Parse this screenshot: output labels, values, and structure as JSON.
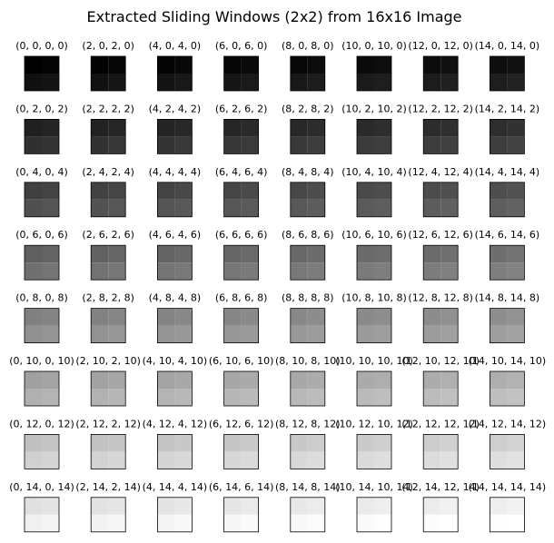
{
  "chart_data": {
    "type": "heatmap",
    "title": "Extracted Sliding Windows (2x2) from 16x16 Image",
    "colormap": "gray",
    "value_range": [
      0,
      255
    ],
    "grid_size": [
      8,
      8
    ],
    "windows": [
      {
        "label": "(0, 0, 0, 0)",
        "pixels": [
          [
            0,
            4
          ],
          [
            16,
            20
          ]
        ]
      },
      {
        "label": "(2, 0, 2, 0)",
        "pixels": [
          [
            2,
            6
          ],
          [
            18,
            22
          ]
        ]
      },
      {
        "label": "(4, 0, 4, 0)",
        "pixels": [
          [
            4,
            8
          ],
          [
            20,
            24
          ]
        ]
      },
      {
        "label": "(6, 0, 6, 0)",
        "pixels": [
          [
            6,
            10
          ],
          [
            22,
            26
          ]
        ]
      },
      {
        "label": "(8, 0, 8, 0)",
        "pixels": [
          [
            8,
            12
          ],
          [
            24,
            28
          ]
        ]
      },
      {
        "label": "(10, 0, 10, 0)",
        "pixels": [
          [
            10,
            14
          ],
          [
            26,
            30
          ]
        ]
      },
      {
        "label": "(12, 0, 12, 0)",
        "pixels": [
          [
            12,
            16
          ],
          [
            28,
            32
          ]
        ]
      },
      {
        "label": "(14, 0, 14, 0)",
        "pixels": [
          [
            14,
            18
          ],
          [
            30,
            34
          ]
        ]
      },
      {
        "label": "(0, 2, 0, 2)",
        "pixels": [
          [
            32,
            36
          ],
          [
            48,
            52
          ]
        ]
      },
      {
        "label": "(2, 2, 2, 2)",
        "pixels": [
          [
            34,
            38
          ],
          [
            50,
            54
          ]
        ]
      },
      {
        "label": "(4, 2, 4, 2)",
        "pixels": [
          [
            36,
            40
          ],
          [
            52,
            56
          ]
        ]
      },
      {
        "label": "(6, 2, 6, 2)",
        "pixels": [
          [
            38,
            42
          ],
          [
            54,
            58
          ]
        ]
      },
      {
        "label": "(8, 2, 8, 2)",
        "pixels": [
          [
            40,
            44
          ],
          [
            56,
            60
          ]
        ]
      },
      {
        "label": "(10, 2, 10, 2)",
        "pixels": [
          [
            42,
            46
          ],
          [
            58,
            62
          ]
        ]
      },
      {
        "label": "(12, 2, 12, 2)",
        "pixels": [
          [
            44,
            48
          ],
          [
            60,
            64
          ]
        ]
      },
      {
        "label": "(14, 2, 14, 2)",
        "pixels": [
          [
            46,
            50
          ],
          [
            62,
            66
          ]
        ]
      },
      {
        "label": "(0, 4, 0, 4)",
        "pixels": [
          [
            64,
            68
          ],
          [
            80,
            84
          ]
        ]
      },
      {
        "label": "(2, 4, 2, 4)",
        "pixels": [
          [
            66,
            70
          ],
          [
            82,
            86
          ]
        ]
      },
      {
        "label": "(4, 4, 4, 4)",
        "pixels": [
          [
            68,
            72
          ],
          [
            84,
            88
          ]
        ]
      },
      {
        "label": "(6, 4, 6, 4)",
        "pixels": [
          [
            70,
            74
          ],
          [
            86,
            90
          ]
        ]
      },
      {
        "label": "(8, 4, 8, 4)",
        "pixels": [
          [
            72,
            76
          ],
          [
            88,
            92
          ]
        ]
      },
      {
        "label": "(10, 4, 10, 4)",
        "pixels": [
          [
            74,
            78
          ],
          [
            90,
            94
          ]
        ]
      },
      {
        "label": "(12, 4, 12, 4)",
        "pixels": [
          [
            76,
            80
          ],
          [
            92,
            96
          ]
        ]
      },
      {
        "label": "(14, 4, 14, 4)",
        "pixels": [
          [
            78,
            82
          ],
          [
            94,
            98
          ]
        ]
      },
      {
        "label": "(0, 6, 0, 6)",
        "pixels": [
          [
            96,
            100
          ],
          [
            112,
            116
          ]
        ]
      },
      {
        "label": "(2, 6, 2, 6)",
        "pixels": [
          [
            98,
            102
          ],
          [
            114,
            118
          ]
        ]
      },
      {
        "label": "(4, 6, 4, 6)",
        "pixels": [
          [
            100,
            104
          ],
          [
            116,
            120
          ]
        ]
      },
      {
        "label": "(6, 6, 6, 6)",
        "pixels": [
          [
            102,
            106
          ],
          [
            118,
            122
          ]
        ]
      },
      {
        "label": "(8, 6, 8, 6)",
        "pixels": [
          [
            104,
            108
          ],
          [
            120,
            124
          ]
        ]
      },
      {
        "label": "(10, 6, 10, 6)",
        "pixels": [
          [
            106,
            110
          ],
          [
            122,
            126
          ]
        ]
      },
      {
        "label": "(12, 6, 12, 6)",
        "pixels": [
          [
            108,
            112
          ],
          [
            124,
            128
          ]
        ]
      },
      {
        "label": "(14, 6, 14, 6)",
        "pixels": [
          [
            110,
            114
          ],
          [
            126,
            130
          ]
        ]
      },
      {
        "label": "(0, 8, 0, 8)",
        "pixels": [
          [
            128,
            132
          ],
          [
            144,
            148
          ]
        ]
      },
      {
        "label": "(2, 8, 2, 8)",
        "pixels": [
          [
            130,
            134
          ],
          [
            146,
            150
          ]
        ]
      },
      {
        "label": "(4, 8, 4, 8)",
        "pixels": [
          [
            132,
            136
          ],
          [
            148,
            152
          ]
        ]
      },
      {
        "label": "(6, 8, 6, 8)",
        "pixels": [
          [
            134,
            138
          ],
          [
            150,
            154
          ]
        ]
      },
      {
        "label": "(8, 8, 8, 8)",
        "pixels": [
          [
            136,
            140
          ],
          [
            152,
            156
          ]
        ]
      },
      {
        "label": "(10, 8, 10, 8)",
        "pixels": [
          [
            138,
            142
          ],
          [
            154,
            158
          ]
        ]
      },
      {
        "label": "(12, 8, 12, 8)",
        "pixels": [
          [
            140,
            144
          ],
          [
            156,
            160
          ]
        ]
      },
      {
        "label": "(14, 8, 14, 8)",
        "pixels": [
          [
            142,
            146
          ],
          [
            158,
            162
          ]
        ]
      },
      {
        "label": "(0, 10, 0, 10)",
        "pixels": [
          [
            160,
            164
          ],
          [
            176,
            180
          ]
        ]
      },
      {
        "label": "(2, 10, 2, 10)",
        "pixels": [
          [
            162,
            166
          ],
          [
            178,
            182
          ]
        ]
      },
      {
        "label": "(4, 10, 4, 10)",
        "pixels": [
          [
            164,
            168
          ],
          [
            180,
            184
          ]
        ]
      },
      {
        "label": "(6, 10, 6, 10)",
        "pixels": [
          [
            166,
            170
          ],
          [
            182,
            186
          ]
        ]
      },
      {
        "label": "(8, 10, 8, 10)",
        "pixels": [
          [
            168,
            172
          ],
          [
            184,
            188
          ]
        ]
      },
      {
        "label": "(10, 10, 10, 10)",
        "pixels": [
          [
            170,
            174
          ],
          [
            186,
            190
          ]
        ]
      },
      {
        "label": "(12, 10, 12, 10)",
        "pixels": [
          [
            172,
            176
          ],
          [
            188,
            192
          ]
        ]
      },
      {
        "label": "(14, 10, 14, 10)",
        "pixels": [
          [
            174,
            178
          ],
          [
            190,
            194
          ]
        ]
      },
      {
        "label": "(0, 12, 0, 12)",
        "pixels": [
          [
            192,
            196
          ],
          [
            208,
            212
          ]
        ]
      },
      {
        "label": "(2, 12, 2, 12)",
        "pixels": [
          [
            194,
            198
          ],
          [
            210,
            214
          ]
        ]
      },
      {
        "label": "(4, 12, 4, 12)",
        "pixels": [
          [
            196,
            200
          ],
          [
            212,
            216
          ]
        ]
      },
      {
        "label": "(6, 12, 6, 12)",
        "pixels": [
          [
            198,
            202
          ],
          [
            214,
            218
          ]
        ]
      },
      {
        "label": "(8, 12, 8, 12)",
        "pixels": [
          [
            200,
            204
          ],
          [
            216,
            220
          ]
        ]
      },
      {
        "label": "(10, 12, 10, 12)",
        "pixels": [
          [
            202,
            206
          ],
          [
            218,
            222
          ]
        ]
      },
      {
        "label": "(12, 12, 12, 12)",
        "pixels": [
          [
            204,
            208
          ],
          [
            220,
            224
          ]
        ]
      },
      {
        "label": "(14, 12, 14, 12)",
        "pixels": [
          [
            206,
            210
          ],
          [
            222,
            226
          ]
        ]
      },
      {
        "label": "(0, 14, 0, 14)",
        "pixels": [
          [
            224,
            228
          ],
          [
            240,
            244
          ]
        ]
      },
      {
        "label": "(2, 14, 2, 14)",
        "pixels": [
          [
            226,
            230
          ],
          [
            242,
            246
          ]
        ]
      },
      {
        "label": "(4, 14, 4, 14)",
        "pixels": [
          [
            228,
            232
          ],
          [
            244,
            248
          ]
        ]
      },
      {
        "label": "(6, 14, 6, 14)",
        "pixels": [
          [
            230,
            234
          ],
          [
            246,
            250
          ]
        ]
      },
      {
        "label": "(8, 14, 8, 14)",
        "pixels": [
          [
            232,
            236
          ],
          [
            248,
            252
          ]
        ]
      },
      {
        "label": "(10, 14, 10, 14)",
        "pixels": [
          [
            234,
            238
          ],
          [
            250,
            254
          ]
        ]
      },
      {
        "label": "(12, 14, 12, 14)",
        "pixels": [
          [
            236,
            240
          ],
          [
            252,
            255
          ]
        ]
      },
      {
        "label": "(14, 14, 14, 14)",
        "pixels": [
          [
            238,
            242
          ],
          [
            254,
            255
          ]
        ]
      }
    ]
  }
}
